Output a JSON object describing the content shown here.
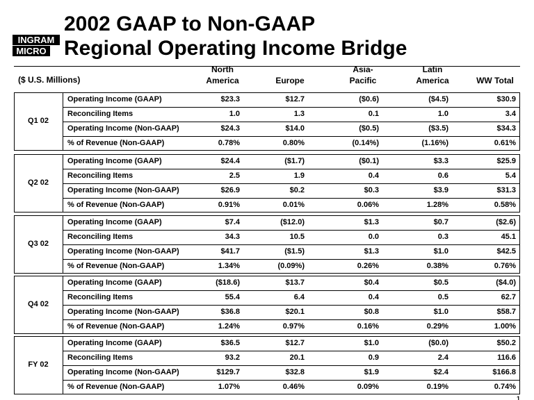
{
  "header": {
    "logo": [
      "INGRAM",
      "MICRO"
    ],
    "title": [
      "2002 GAAP to Non-GAAP",
      "Regional Operating Income Bridge"
    ]
  },
  "table": {
    "units": "($ U.S. Millions)",
    "columns": [
      [
        "North",
        "America"
      ],
      [
        "Europe"
      ],
      [
        "Asia-",
        "Pacific"
      ],
      [
        "Latin",
        "America"
      ],
      [
        "WW Total"
      ]
    ],
    "groups": [
      {
        "label": "Q1 02",
        "rows": [
          {
            "label": "Operating Income (GAAP)",
            "values": [
              "$23.3",
              "$12.7",
              "($0.6)",
              "($4.5)",
              "$30.9"
            ]
          },
          {
            "label": "Reconciling Items",
            "values": [
              "1.0",
              "1.3",
              "0.1",
              "1.0",
              "3.4"
            ]
          },
          {
            "label": "Operating Income (Non-GAAP)",
            "values": [
              "$24.3",
              "$14.0",
              "($0.5)",
              "($3.5)",
              "$34.3"
            ]
          },
          {
            "label": "% of Revenue (Non-GAAP)",
            "values": [
              "0.78%",
              "0.80%",
              "(0.14%)",
              "(1.16%)",
              "0.61%"
            ]
          }
        ]
      },
      {
        "label": "Q2 02",
        "rows": [
          {
            "label": "Operating Income (GAAP)",
            "values": [
              "$24.4",
              "($1.7)",
              "($0.1)",
              "$3.3",
              "$25.9"
            ]
          },
          {
            "label": "Reconciling Items",
            "values": [
              "2.5",
              "1.9",
              "0.4",
              "0.6",
              "5.4"
            ]
          },
          {
            "label": "Operating Income (Non-GAAP)",
            "values": [
              "$26.9",
              "$0.2",
              "$0.3",
              "$3.9",
              "$31.3"
            ]
          },
          {
            "label": "% of Revenue (Non-GAAP)",
            "values": [
              "0.91%",
              "0.01%",
              "0.06%",
              "1.28%",
              "0.58%"
            ]
          }
        ]
      },
      {
        "label": "Q3 02",
        "rows": [
          {
            "label": "Operating Income (GAAP)",
            "values": [
              "$7.4",
              "($12.0)",
              "$1.3",
              "$0.7",
              "($2.6)"
            ]
          },
          {
            "label": "Reconciling Items",
            "values": [
              "34.3",
              "10.5",
              "0.0",
              "0.3",
              "45.1"
            ]
          },
          {
            "label": "Operating Income (Non-GAAP)",
            "values": [
              "$41.7",
              "($1.5)",
              "$1.3",
              "$1.0",
              "$42.5"
            ]
          },
          {
            "label": "% of Revenue (Non-GAAP)",
            "values": [
              "1.34%",
              "(0.09%)",
              "0.26%",
              "0.38%",
              "0.76%"
            ]
          }
        ]
      },
      {
        "label": "Q4 02",
        "rows": [
          {
            "label": "Operating Income (GAAP)",
            "values": [
              "($18.6)",
              "$13.7",
              "$0.4",
              "$0.5",
              "($4.0)"
            ]
          },
          {
            "label": "Reconciling Items",
            "values": [
              "55.4",
              "6.4",
              "0.4",
              "0.5",
              "62.7"
            ]
          },
          {
            "label": "Operating Income (Non-GAAP)",
            "values": [
              "$36.8",
              "$20.1",
              "$0.8",
              "$1.0",
              "$58.7"
            ]
          },
          {
            "label": "% of Revenue (Non-GAAP)",
            "values": [
              "1.24%",
              "0.97%",
              "0.16%",
              "0.29%",
              "1.00%"
            ]
          }
        ]
      },
      {
        "label": "FY 02",
        "rows": [
          {
            "label": "Operating Income (GAAP)",
            "values": [
              "$36.5",
              "$12.7",
              "$1.0",
              "($0.0)",
              "$50.2"
            ]
          },
          {
            "label": "Reconciling Items",
            "values": [
              "93.2",
              "20.1",
              "0.9",
              "2.4",
              "116.6"
            ]
          },
          {
            "label": "Operating Income (Non-GAAP)",
            "values": [
              "$129.7",
              "$32.8",
              "$1.9",
              "$2.4",
              "$166.8"
            ]
          },
          {
            "label": "% of Revenue (Non-GAAP)",
            "values": [
              "1.07%",
              "0.46%",
              "0.09%",
              "0.19%",
              "0.74%"
            ]
          }
        ]
      }
    ]
  },
  "page_number": "1"
}
